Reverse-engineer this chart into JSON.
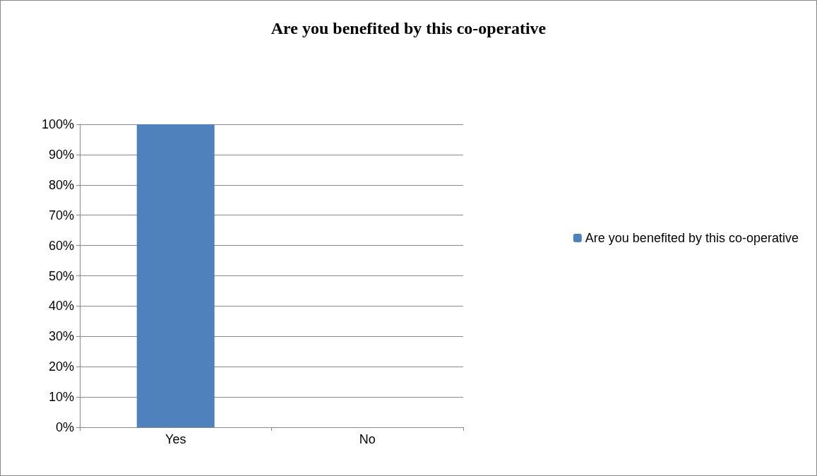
{
  "chart_data": {
    "type": "bar",
    "title": "Are you benefited by this co-operative",
    "categories": [
      "Yes",
      "No"
    ],
    "series": [
      {
        "name": "Are you benefited by this co-operative",
        "color": "#4f81bd",
        "values": [
          100,
          0
        ]
      }
    ],
    "ylim": [
      0,
      100
    ],
    "yticks": [
      {
        "value": 0,
        "label": "0%"
      },
      {
        "value": 10,
        "label": "10%"
      },
      {
        "value": 20,
        "label": "20%"
      },
      {
        "value": 30,
        "label": "30%"
      },
      {
        "value": 40,
        "label": "40%"
      },
      {
        "value": 50,
        "label": "50%"
      },
      {
        "value": 60,
        "label": "60%"
      },
      {
        "value": 70,
        "label": "70%"
      },
      {
        "value": 80,
        "label": "80%"
      },
      {
        "value": 90,
        "label": "90%"
      },
      {
        "value": 100,
        "label": "100%"
      }
    ],
    "grid": "y",
    "legend": "right"
  }
}
